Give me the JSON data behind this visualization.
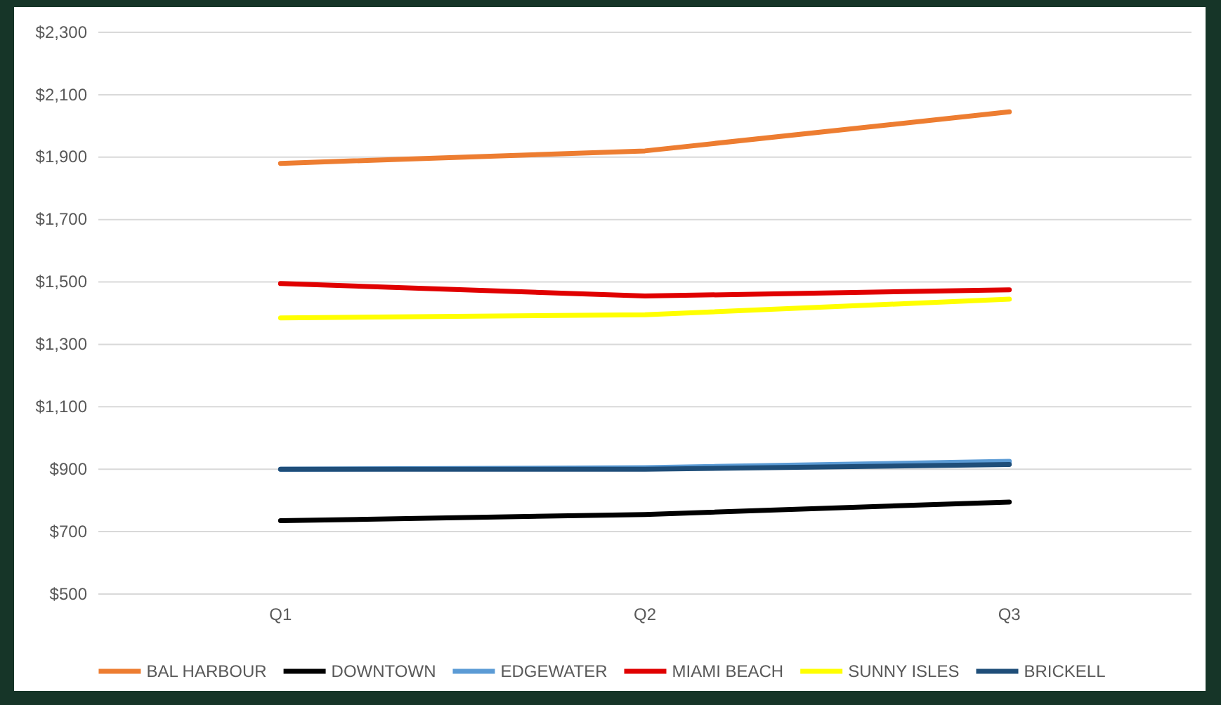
{
  "chart_data": {
    "type": "line",
    "categories": [
      "Q1",
      "Q2",
      "Q3"
    ],
    "series": [
      {
        "name": "BAL HARBOUR",
        "color": "#ed7d31",
        "values": [
          1880,
          1920,
          2045
        ]
      },
      {
        "name": "DOWNTOWN",
        "color": "#000000",
        "values": [
          735,
          755,
          795
        ]
      },
      {
        "name": "EDGEWATER",
        "color": "#5b9bd5",
        "values": [
          900,
          905,
          925
        ]
      },
      {
        "name": "MIAMI BEACH",
        "color": "#e00000",
        "values": [
          1495,
          1455,
          1475
        ]
      },
      {
        "name": "SUNNY ISLES",
        "color": "#ffff00",
        "values": [
          1385,
          1395,
          1445
        ]
      },
      {
        "name": "BRICKELL",
        "color": "#1f4e79",
        "values": [
          900,
          900,
          915
        ]
      }
    ],
    "ylim": [
      500,
      2300
    ],
    "yticks": [
      {
        "value": 500,
        "label": "$500"
      },
      {
        "value": 700,
        "label": "$700"
      },
      {
        "value": 900,
        "label": "$900"
      },
      {
        "value": 1100,
        "label": "$1,100"
      },
      {
        "value": 1300,
        "label": "$1,300"
      },
      {
        "value": 1500,
        "label": "$1,500"
      },
      {
        "value": 1700,
        "label": "$1,700"
      },
      {
        "value": 1900,
        "label": "$1,900"
      },
      {
        "value": 2100,
        "label": "$2,100"
      },
      {
        "value": 2300,
        "label": "$2,300"
      }
    ],
    "grid": "y",
    "legend": "bottom",
    "marker": "none",
    "line_style": "solid"
  }
}
